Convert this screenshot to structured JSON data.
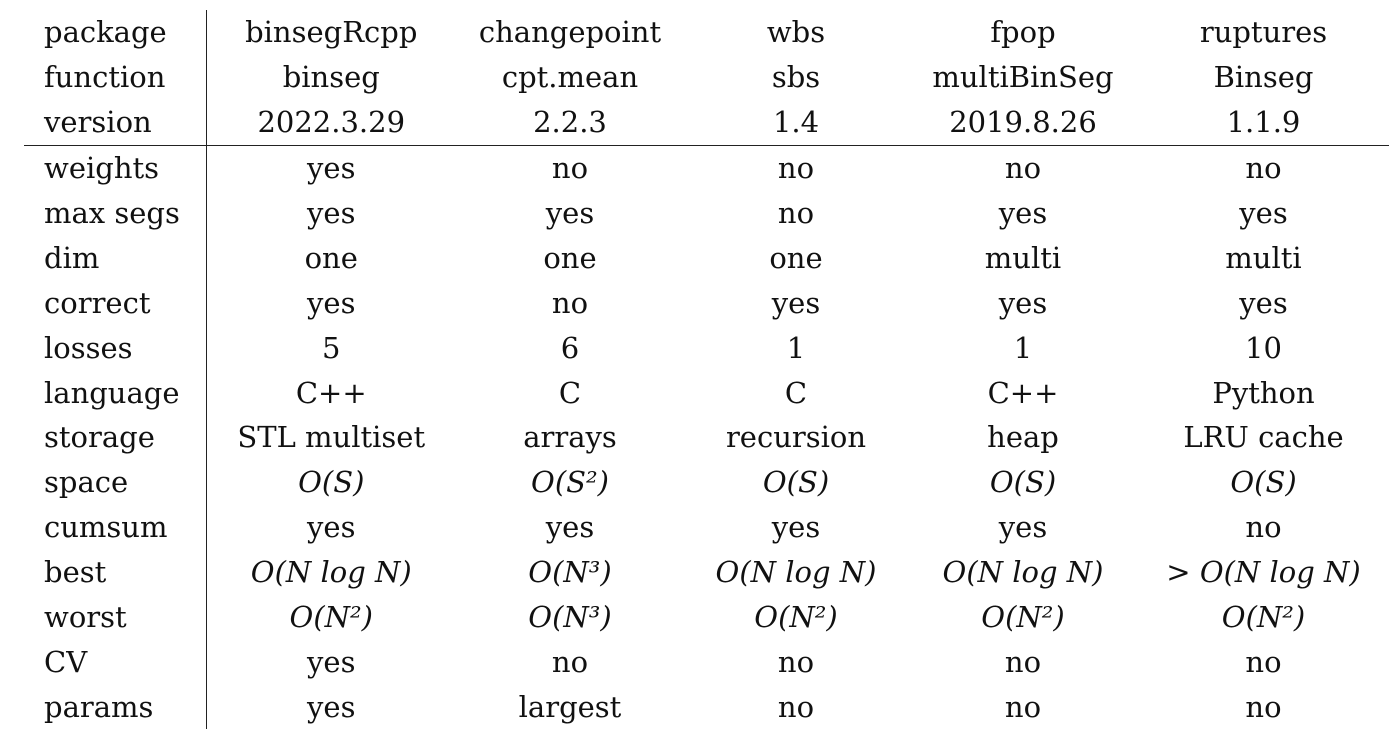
{
  "table": {
    "header_rows": [
      {
        "label": "package",
        "cells": [
          "binsegRcpp",
          "changepoint",
          "wbs",
          "fpop",
          "ruptures"
        ]
      },
      {
        "label": "function",
        "cells": [
          "binseg",
          "cpt.mean",
          "sbs",
          "multiBinSeg",
          "Binseg"
        ]
      },
      {
        "label": "version",
        "cells": [
          "2022.3.29",
          "2.2.3",
          "1.4",
          "2019.8.26",
          "1.1.9"
        ]
      }
    ],
    "body_rows": [
      {
        "label": "weights",
        "cells": [
          "yes",
          "no",
          "no",
          "no",
          "no"
        ]
      },
      {
        "label": "max segs",
        "cells": [
          "yes",
          "yes",
          "no",
          "yes",
          "yes"
        ]
      },
      {
        "label": "dim",
        "cells": [
          "one",
          "one",
          "one",
          "multi",
          "multi"
        ]
      },
      {
        "label": "correct",
        "cells": [
          "yes",
          "no",
          "yes",
          "yes",
          "yes"
        ]
      },
      {
        "label": "losses",
        "cells": [
          "5",
          "6",
          "1",
          "1",
          "10"
        ]
      },
      {
        "label": "language",
        "cells": [
          "C++",
          "C",
          "C",
          "C++",
          "Python"
        ]
      },
      {
        "label": "storage",
        "cells": [
          "STL multiset",
          "arrays",
          "recursion",
          "heap",
          "LRU cache"
        ]
      },
      {
        "label": "space",
        "cells": [
          "O(S)",
          "O(S²)",
          "O(S)",
          "O(S)",
          "O(S)"
        ]
      },
      {
        "label": "cumsum",
        "cells": [
          "yes",
          "yes",
          "yes",
          "yes",
          "no"
        ]
      },
      {
        "label": "best",
        "cells": [
          "O(N log N)",
          "O(N³)",
          "O(N log N)",
          "O(N log N)",
          "> O(N log N)"
        ]
      },
      {
        "label": "worst",
        "cells": [
          "O(N²)",
          "O(N³)",
          "O(N²)",
          "O(N²)",
          "O(N²)"
        ]
      },
      {
        "label": "CV",
        "cells": [
          "yes",
          "no",
          "no",
          "no",
          "no"
        ]
      },
      {
        "label": "params",
        "cells": [
          "yes",
          "largest",
          "no",
          "no",
          "no"
        ]
      }
    ]
  }
}
